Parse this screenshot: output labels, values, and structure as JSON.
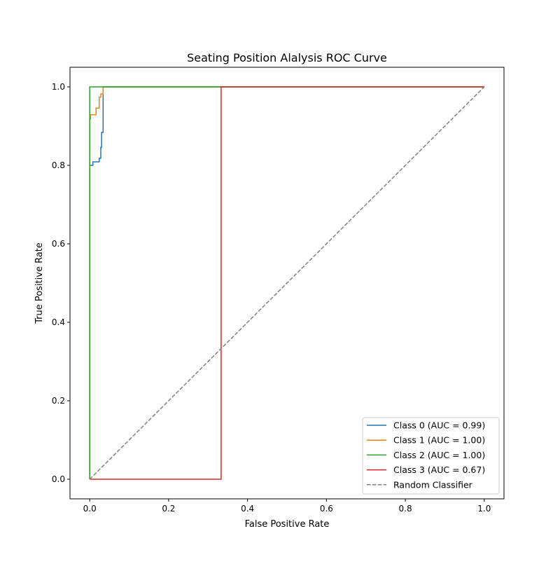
{
  "chart_data": {
    "type": "line",
    "title": "Seating Position Alalysis ROC Curve",
    "xlabel": "False Positive Rate",
    "ylabel": "True Positive Rate",
    "xlim": [
      -0.05,
      1.05
    ],
    "ylim": [
      -0.05,
      1.05
    ],
    "xticks": [
      0.0,
      0.2,
      0.4,
      0.6,
      0.8,
      1.0
    ],
    "yticks": [
      0.0,
      0.2,
      0.4,
      0.6,
      0.8,
      1.0
    ],
    "xtick_labels": [
      "0.0",
      "0.2",
      "0.4",
      "0.6",
      "0.8",
      "1.0"
    ],
    "ytick_labels": [
      "0.0",
      "0.2",
      "0.4",
      "0.6",
      "0.8",
      "1.0"
    ],
    "grid": false,
    "legend_position": "lower-right",
    "series": [
      {
        "name": "Class 0 (AUC = 0.99)",
        "color": "#1f77b4",
        "dash": false,
        "x": [
          0,
          0,
          0.008,
          0.008,
          0.024,
          0.024,
          0.028,
          0.028,
          0.03,
          0.03,
          0.034,
          0.034,
          1.0
        ],
        "y": [
          0,
          0.8,
          0.8,
          0.809,
          0.809,
          0.818,
          0.818,
          0.846,
          0.846,
          0.884,
          0.884,
          1.0,
          1.0
        ]
      },
      {
        "name": "Class 1 (AUC = 1.00)",
        "color": "#ff7f0e",
        "dash": false,
        "x": [
          0,
          0,
          0.002,
          0.002,
          0.016,
          0.016,
          0.024,
          0.024,
          0.028,
          0.028,
          0.034,
          0.034,
          1.0
        ],
        "y": [
          0,
          0.918,
          0.918,
          0.929,
          0.929,
          0.946,
          0.946,
          0.974,
          0.974,
          0.982,
          0.982,
          1.0,
          1.0
        ]
      },
      {
        "name": "Class 2 (AUC = 1.00)",
        "color": "#2ca02c",
        "dash": false,
        "x": [
          0,
          0,
          1.0
        ],
        "y": [
          0,
          1.0,
          1.0
        ]
      },
      {
        "name": "Class 3 (AUC = 0.67)",
        "color": "#d62728",
        "dash": false,
        "x": [
          0,
          0.333,
          0.333,
          1.0
        ],
        "y": [
          0,
          0,
          1.0,
          1.0
        ]
      },
      {
        "name": "Random Classifier",
        "color": "#808080",
        "dash": true,
        "x": [
          0,
          1
        ],
        "y": [
          0,
          1
        ]
      }
    ]
  }
}
